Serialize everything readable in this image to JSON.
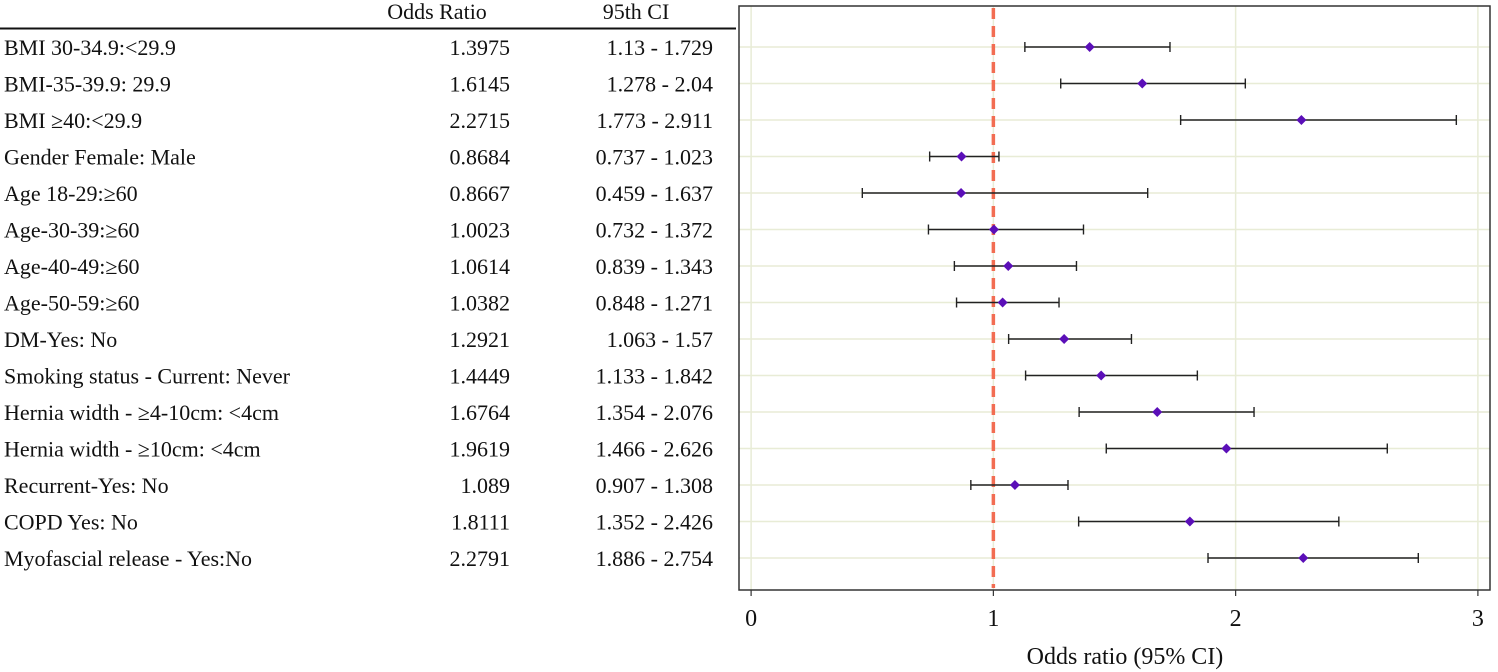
{
  "chart_data": {
    "type": "forest",
    "columns": {
      "label": "",
      "odds_ratio": "Odds Ratio",
      "ci": "95th CI"
    },
    "rows": [
      {
        "label": "BMI 30-34.9:<29.9",
        "or_text": "1.3975",
        "ci_text": "1.13  - 1.729",
        "or": 1.3975,
        "lo": 1.13,
        "hi": 1.729
      },
      {
        "label": "BMI-35-39.9: 29.9",
        "or_text": "1.6145",
        "ci_text": "1.278  - 2.04",
        "or": 1.6145,
        "lo": 1.278,
        "hi": 2.04
      },
      {
        "label": "BMI ≥40:<29.9",
        "or_text": "2.2715",
        "ci_text": "1.773  - 2.911",
        "or": 2.2715,
        "lo": 1.773,
        "hi": 2.911
      },
      {
        "label": "Gender Female: Male",
        "or_text": "0.8684",
        "ci_text": "0.737  - 1.023",
        "or": 0.8684,
        "lo": 0.737,
        "hi": 1.023
      },
      {
        "label": "Age 18-29:≥60",
        "or_text": "0.8667",
        "ci_text": "0.459  - 1.637",
        "or": 0.8667,
        "lo": 0.459,
        "hi": 1.637
      },
      {
        "label": "Age-30-39:≥60",
        "or_text": "1.0023",
        "ci_text": "0.732  - 1.372",
        "or": 1.0023,
        "lo": 0.732,
        "hi": 1.372
      },
      {
        "label": "Age-40-49:≥60",
        "or_text": "1.0614",
        "ci_text": "0.839  - 1.343",
        "or": 1.0614,
        "lo": 0.839,
        "hi": 1.343
      },
      {
        "label": "Age-50-59:≥60",
        "or_text": "1.0382",
        "ci_text": "0.848  - 1.271",
        "or": 1.0382,
        "lo": 0.848,
        "hi": 1.271
      },
      {
        "label": "DM-Yes: No",
        "or_text": "1.2921",
        "ci_text": "1.063  - 1.57",
        "or": 1.2921,
        "lo": 1.063,
        "hi": 1.57
      },
      {
        "label": "Smoking status - Current: Never",
        "or_text": "1.4449",
        "ci_text": "1.133  - 1.842",
        "or": 1.4449,
        "lo": 1.133,
        "hi": 1.842
      },
      {
        "label": "Hernia width - ≥4-10cm: <4cm",
        "or_text": "1.6764",
        "ci_text": "1.354  - 2.076",
        "or": 1.6764,
        "lo": 1.354,
        "hi": 2.076
      },
      {
        "label": "Hernia width - ≥10cm: <4cm",
        "or_text": "1.9619",
        "ci_text": "1.466  - 2.626",
        "or": 1.9619,
        "lo": 1.466,
        "hi": 2.626
      },
      {
        "label": "Recurrent-Yes: No",
        "or_text": "1.089",
        "ci_text": "0.907  - 1.308",
        "or": 1.089,
        "lo": 0.907,
        "hi": 1.308
      },
      {
        "label": "COPD Yes: No",
        "or_text": "1.8111",
        "ci_text": "1.352  - 2.426",
        "or": 1.8111,
        "lo": 1.352,
        "hi": 2.426
      },
      {
        "label": "Myofascial release - Yes:No",
        "or_text": "2.2791",
        "ci_text": "1.886  - 2.754",
        "or": 2.2791,
        "lo": 1.886,
        "hi": 2.754
      }
    ],
    "xlabel": "Odds ratio (95% CI)",
    "xlim": [
      -0.05,
      3.05
    ],
    "xticks": [
      0,
      1,
      2,
      3
    ],
    "reference_line": 1,
    "grid": true,
    "colors": {
      "marker": "#5b0fb8",
      "reference": "#f26d52",
      "ci_line": "#222222",
      "grid": "#e8ecd6",
      "axis": "#333333"
    }
  }
}
